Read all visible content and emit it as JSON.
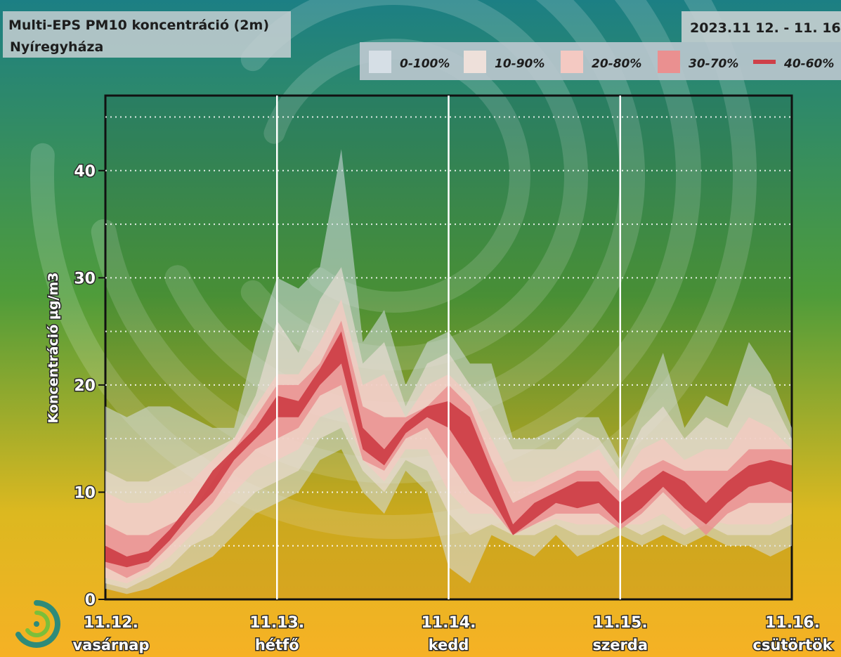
{
  "title": {
    "line1": "Multi-EPS PM10 koncentráció (2m)",
    "line2": "Nyíregyháza",
    "date_range": "2023.11 12. - 11. 16"
  },
  "colors": {
    "band_0_100": "#d6dfe6",
    "band_10_90": "#eee0da",
    "band_20_80": "#f4c9c2",
    "band_30_70": "#ea9090",
    "band_40_60": "#cf4048",
    "legend_bg": "#bcc8cf",
    "bg_top": "#1c7f84",
    "bg_mid": "#4f9c3a",
    "bg_low": "#dcb820",
    "bg_bottom": "#f6b124"
  },
  "chart_data": {
    "type": "area",
    "title": "Multi-EPS PM10 koncentráció (2m)",
    "subtitle": "Nyíregyháza",
    "ylabel": "Koncentráció µg/m3",
    "xlabel": "",
    "ylim": [
      0,
      47
    ],
    "yticks": [
      0,
      10,
      20,
      30,
      40
    ],
    "grid": "dotted horizontal every 5, solid vertical at day boundaries",
    "legend_position": "top-right",
    "x_ticks": [
      {
        "x": 0,
        "label": "11.12.",
        "day": "vasárnap"
      },
      {
        "x": 24,
        "label": "11.13.",
        "day": "hétfő"
      },
      {
        "x": 48,
        "label": "11.14.",
        "day": "kedd"
      },
      {
        "x": 72,
        "label": "11.15.",
        "day": "szerda"
      },
      {
        "x": 96,
        "label": "11.16.",
        "day": "csütörtök"
      }
    ],
    "x": [
      0,
      3,
      6,
      9,
      12,
      15,
      18,
      21,
      24,
      27,
      30,
      33,
      36,
      39,
      42,
      45,
      48,
      51,
      54,
      57,
      60,
      63,
      66,
      69,
      72,
      75,
      78,
      81,
      84,
      87,
      90,
      93,
      96
    ],
    "series": [
      {
        "name": "0-100%",
        "lower": [
          1,
          0.5,
          1,
          2,
          3,
          4,
          6,
          8,
          9,
          10,
          13,
          14,
          10,
          8,
          12,
          10,
          3,
          1.5,
          6,
          5,
          4,
          6,
          4,
          5,
          6,
          5,
          6,
          5,
          6,
          5,
          5,
          4,
          5
        ],
        "upper": [
          18,
          17,
          18,
          18,
          17,
          16,
          16,
          24,
          30,
          29,
          31,
          42,
          24,
          27,
          20,
          24,
          25,
          22,
          22,
          15,
          15,
          16,
          17,
          17,
          13,
          18,
          23,
          16,
          19,
          18,
          24,
          21,
          16
        ]
      },
      {
        "name": "10-90%",
        "lower": [
          1.5,
          1,
          2,
          3,
          5,
          6,
          8,
          10,
          11,
          12,
          15,
          16,
          12,
          10,
          13,
          12,
          8,
          6,
          7,
          6,
          6,
          7,
          6,
          6,
          7,
          6,
          7,
          6,
          7,
          6,
          6,
          6,
          7
        ]
      },
      {
        "name": "10-90%_upper",
        "upper": [
          12,
          11,
          11,
          12,
          13,
          14,
          15,
          19,
          26,
          23,
          28,
          31,
          22,
          24,
          18,
          22,
          23,
          20,
          18,
          14,
          14,
          14,
          16,
          15,
          12,
          16,
          18,
          15,
          17,
          16,
          20,
          19,
          15
        ]
      },
      {
        "name": "20-80%",
        "lower": [
          2,
          1.5,
          2.5,
          4,
          6,
          8,
          10,
          12,
          13,
          14,
          17,
          18,
          13,
          11,
          14,
          14,
          10,
          8,
          8,
          6.5,
          7,
          7.5,
          7,
          7,
          7,
          7,
          8,
          6.5,
          7.5,
          7,
          7,
          7,
          8
        ],
        "upper": [
          10,
          9,
          9,
          10,
          11,
          13,
          15,
          18,
          21,
          21,
          24,
          28,
          20,
          21,
          17,
          20,
          21,
          19,
          15,
          11,
          11,
          12,
          13,
          14,
          11,
          14,
          15,
          13,
          14,
          14,
          17,
          16,
          14
        ]
      },
      {
        "name": "30-70%",
        "lower": [
          3,
          2,
          3,
          5,
          7,
          9,
          12,
          14,
          15,
          16,
          19,
          20,
          13,
          12,
          15,
          16,
          13,
          10,
          8.5,
          6,
          7,
          8,
          8,
          8,
          6.5,
          8,
          10,
          8,
          6,
          8,
          9,
          9,
          9
        ],
        "upper": [
          7,
          6,
          6,
          7,
          8,
          11,
          14,
          17,
          20,
          20,
          22,
          26,
          18,
          17,
          17,
          18,
          20,
          18,
          13,
          9,
          10,
          11,
          12,
          12,
          10,
          12,
          13,
          12,
          12,
          12,
          14,
          14,
          14
        ]
      },
      {
        "name": "40-60%",
        "lower": [
          3.5,
          3,
          3.5,
          5.5,
          8,
          10,
          13,
          15,
          17,
          17,
          20,
          22,
          14,
          12.5,
          15.5,
          17,
          16,
          13,
          9.5,
          6,
          7.5,
          9,
          8.5,
          9,
          7,
          8.5,
          10.5,
          8.5,
          7,
          9,
          10.5,
          11,
          10
        ],
        "upper": [
          5,
          4,
          4.5,
          6.5,
          9,
          12,
          14,
          16,
          19,
          18.5,
          21.5,
          25,
          16,
          14,
          16.5,
          18,
          18.5,
          17,
          12,
          7,
          9,
          10,
          11,
          11,
          9,
          10.5,
          12,
          11,
          9,
          11,
          12.5,
          13,
          12.5
        ]
      }
    ],
    "legend": [
      "0-100%",
      "10-90%",
      "20-80%",
      "30-70%",
      "40-60%"
    ]
  }
}
